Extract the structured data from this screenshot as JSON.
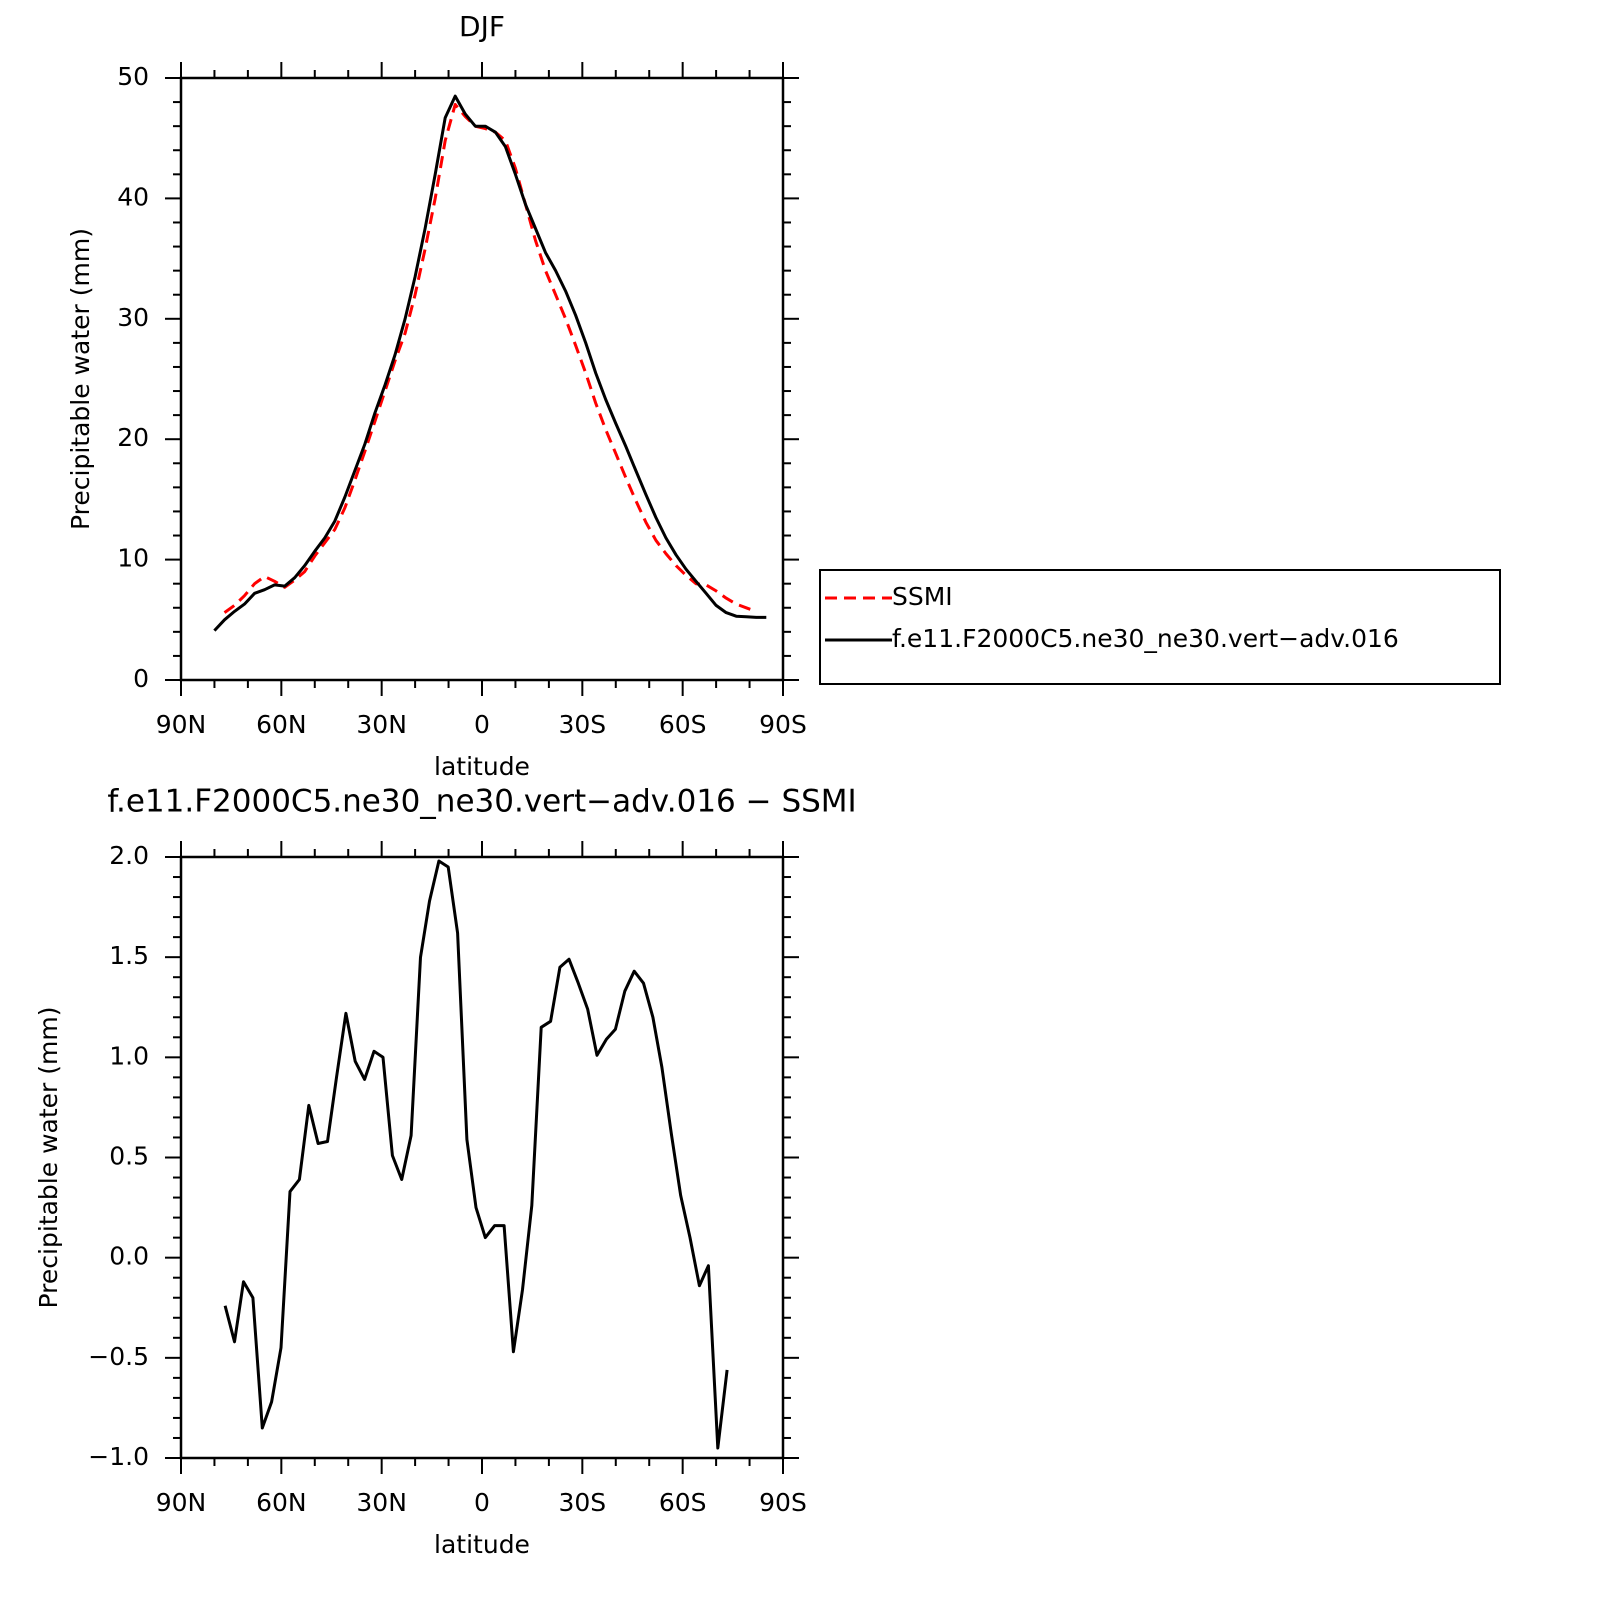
{
  "chart_data": [
    {
      "type": "line",
      "title": "DJF",
      "xlabel": "latitude",
      "ylabel": "Precipitable water (mm)",
      "x": [
        80,
        77,
        74,
        71,
        68,
        65,
        62,
        59,
        56,
        53,
        50,
        47,
        44,
        41,
        38,
        35,
        32,
        29,
        26,
        23,
        20,
        17,
        14,
        11,
        8,
        5,
        2,
        -1,
        -4,
        -7,
        -10,
        -13,
        -16,
        -19,
        -22,
        -25,
        -28,
        -31,
        -34,
        -37,
        -40,
        -43,
        -46,
        -49,
        -52,
        -55,
        -58,
        -61,
        -64,
        -67,
        -70,
        -73,
        -76,
        -79,
        -82,
        -85
      ],
      "series": [
        {
          "name": "SSMI",
          "color": "#ff0000",
          "linestyle": "dashed",
          "values": [
            null,
            5.6,
            6.2,
            7.0,
            8.0,
            8.6,
            8.2,
            7.7,
            8.3,
            9.0,
            10.3,
            11.4,
            12.5,
            14.3,
            16.6,
            19.0,
            21.5,
            24.0,
            26.5,
            28.8,
            32.0,
            35.8,
            40.0,
            44.8,
            47.8,
            46.8,
            46.0,
            45.8,
            45.5,
            44.8,
            42.5,
            39.5,
            36.5,
            34.0,
            32.0,
            30.0,
            27.8,
            25.5,
            23.0,
            20.8,
            18.8,
            16.8,
            14.9,
            13.1,
            11.6,
            10.5,
            9.5,
            8.7,
            8.0,
            7.9,
            7.4,
            6.8,
            6.3,
            6.0,
            5.7,
            null
          ]
        },
        {
          "name": "f.e11.F2000C5.ne30_ne30.vert−adv.016",
          "color": "#000000",
          "linestyle": "solid",
          "values": [
            4.1,
            5.0,
            5.7,
            6.3,
            7.2,
            7.5,
            7.9,
            7.8,
            8.5,
            9.5,
            10.7,
            11.8,
            13.2,
            15.2,
            17.4,
            19.6,
            22.2,
            24.5,
            27.0,
            30.0,
            33.5,
            37.5,
            42.0,
            46.7,
            48.5,
            47.0,
            46.0,
            46.0,
            45.5,
            44.3,
            42.0,
            39.5,
            37.5,
            35.5,
            34.0,
            32.3,
            30.3,
            28.0,
            25.5,
            23.3,
            21.3,
            19.4,
            17.4,
            15.4,
            13.5,
            11.8,
            10.4,
            9.2,
            8.2,
            7.2,
            6.2,
            5.6,
            5.3,
            5.25,
            5.2,
            5.2
          ]
        }
      ],
      "xlim": [
        90,
        -90
      ],
      "xticks": [
        {
          "value": 90,
          "label": "90N"
        },
        {
          "value": 60,
          "label": "60N"
        },
        {
          "value": 30,
          "label": "30N"
        },
        0,
        {
          "value": -30,
          "label": "30S"
        },
        {
          "value": -60,
          "label": "60S"
        },
        {
          "value": -90,
          "label": "90S"
        }
      ],
      "ylim": [
        0,
        50
      ],
      "yticks": [
        0,
        10,
        20,
        30,
        40,
        50
      ],
      "legend": "right"
    },
    {
      "type": "line",
      "title": "f.e11.F2000C5.ne30_ne30.vert−adv.016 − SSMI",
      "xlabel": "latitude",
      "ylabel": "Precipitable water (mm)",
      "x": [
        76.8,
        74.0,
        71.3,
        68.5,
        65.7,
        62.9,
        60.1,
        57.4,
        54.6,
        51.8,
        49.0,
        46.2,
        43.5,
        40.7,
        37.9,
        35.1,
        32.3,
        29.6,
        26.8,
        24.0,
        21.2,
        18.4,
        15.7,
        12.9,
        10.1,
        7.3,
        4.5,
        1.8,
        -1.0,
        -3.8,
        -6.6,
        -9.4,
        -12.1,
        -14.9,
        -17.7,
        -20.5,
        -23.3,
        -26.0,
        -28.8,
        -31.6,
        -34.4,
        -37.2,
        -39.9,
        -42.7,
        -45.5,
        -48.3,
        -51.1,
        -53.8,
        -56.6,
        -59.4,
        -62.2,
        -65.0,
        -67.7,
        -70.5,
        -73.3
      ],
      "color": "#000000",
      "values": [
        -0.24,
        -0.42,
        -0.12,
        -0.2,
        -0.85,
        -0.72,
        -0.45,
        0.33,
        0.39,
        0.76,
        0.57,
        0.58,
        0.9,
        1.22,
        0.98,
        0.89,
        1.03,
        1.0,
        0.51,
        0.39,
        0.61,
        1.5,
        1.78,
        1.98,
        1.95,
        1.62,
        0.59,
        0.25,
        0.1,
        0.16,
        0.16,
        -0.47,
        -0.16,
        0.26,
        1.15,
        1.18,
        1.45,
        1.49,
        1.37,
        1.24,
        1.01,
        1.09,
        1.14,
        1.33,
        1.43,
        1.37,
        1.2,
        0.95,
        0.62,
        0.31,
        0.1,
        -0.14,
        -0.04,
        -0.95,
        -0.56
      ],
      "xlim": [
        90,
        -90
      ],
      "xticks": [
        {
          "value": 90,
          "label": "90N"
        },
        {
          "value": 60,
          "label": "60N"
        },
        {
          "value": 30,
          "label": "30N"
        },
        0,
        {
          "value": -30,
          "label": "30S"
        },
        {
          "value": -60,
          "label": "60S"
        },
        {
          "value": -90,
          "label": "90S"
        }
      ],
      "ylim": [
        -1,
        2
      ],
      "yticks": [
        {
          "value": -1,
          "label": "−1.0"
        },
        {
          "value": -0.5,
          "label": "−0.5"
        },
        {
          "value": 0,
          "label": "0.0"
        },
        0.5,
        {
          "value": 1,
          "label": "1.0"
        },
        1.5,
        {
          "value": 2,
          "label": "2.0"
        }
      ]
    }
  ]
}
